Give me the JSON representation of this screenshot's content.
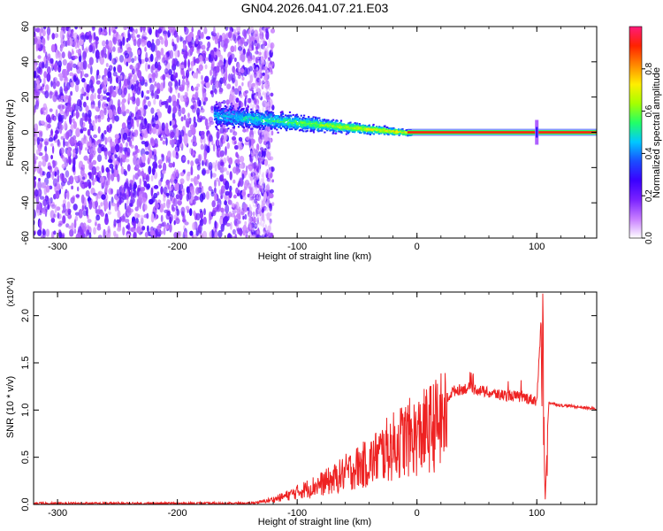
{
  "title": "GN04.2026.041.07.21.E03",
  "colors": {
    "snr_line": "#ee2222",
    "colormap": [
      "#ffffff",
      "#c77dff",
      "#7a22ff",
      "#3a00ff",
      "#1a4dff",
      "#00c8ff",
      "#22ff66",
      "#a6ff00",
      "#ffee00",
      "#ff8800",
      "#ff2200",
      "#ff1a7a"
    ]
  },
  "chart_data": [
    {
      "type": "heatmap",
      "xlabel": "Height of straight line (km)",
      "ylabel": "Frequency (Hz)",
      "xlim": [
        -320,
        150
      ],
      "ylim": [
        -60,
        60
      ],
      "xticks": [
        -300,
        -200,
        -100,
        0,
        100
      ],
      "yticks": [
        -60,
        -40,
        -20,
        0,
        20,
        40,
        60
      ],
      "colorbar": {
        "label": "Normalized spectral amplitude",
        "range": [
          0.0,
          1.0
        ],
        "ticks": [
          0.0,
          0.2,
          0.4,
          0.6,
          0.8
        ]
      },
      "features": {
        "noise_region_x": [
          -320,
          -135
        ],
        "dispersed_band_x": [
          -170,
          -5
        ],
        "dispersed_band_freq_hz": [
          10,
          0
        ],
        "line_x": [
          0,
          150
        ],
        "line_freq_hz": 0,
        "spike_x": 100
      }
    },
    {
      "type": "line",
      "xlabel": "Height of straight line (km)",
      "ylabel": "SNR (10 * v/v)",
      "y_multiplier": "(x10^4)",
      "xlim": [
        -320,
        150
      ],
      "ylim": [
        0.0,
        2.25
      ],
      "xticks": [
        -300,
        -200,
        -100,
        0,
        100
      ],
      "yticks": [
        0.0,
        0.5,
        1.0,
        1.5,
        2.0
      ],
      "series": [
        {
          "x": [
            -320,
            -200,
            -140,
            -130,
            -120,
            -110,
            -100,
            -90,
            -80,
            -70,
            -60,
            -50,
            -40,
            -30,
            -20,
            -10,
            0,
            10,
            20,
            25,
            30,
            40,
            50,
            60,
            70,
            80,
            90,
            100,
            105,
            107,
            110,
            120,
            130,
            150
          ],
          "y": [
            0.01,
            0.01,
            0.01,
            0.03,
            0.06,
            0.1,
            0.15,
            0.2,
            0.25,
            0.3,
            0.38,
            0.45,
            0.5,
            0.62,
            0.7,
            0.8,
            0.82,
            0.92,
            1.0,
            1.12,
            1.2,
            1.23,
            1.22,
            1.18,
            1.16,
            1.15,
            1.13,
            1.1,
            2.25,
            0.05,
            1.08,
            1.05,
            1.04,
            1.01
          ]
        }
      ]
    }
  ]
}
